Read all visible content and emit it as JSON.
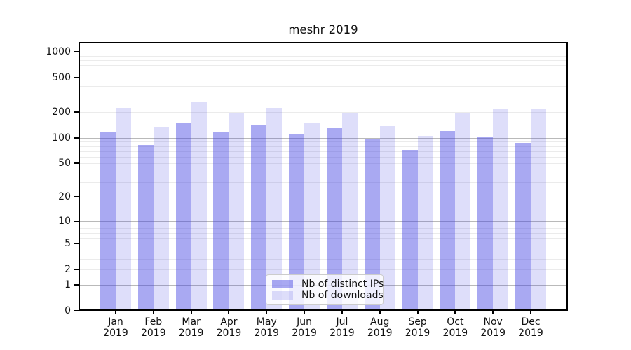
{
  "title": "meshr 2019",
  "chart_data": {
    "type": "bar",
    "title": "meshr 2019",
    "categories": [
      "Jan 2019",
      "Feb 2019",
      "Mar 2019",
      "Apr 2019",
      "May 2019",
      "Jun 2019",
      "Jul 2019",
      "Aug 2019",
      "Sep 2019",
      "Oct 2019",
      "Nov 2019",
      "Dec 2019"
    ],
    "series": [
      {
        "name": "Nb of distinct IPs",
        "color": "rgba(60,60,225,0.44)",
        "values": [
          118,
          83,
          148,
          115,
          139,
          110,
          129,
          96,
          72,
          120,
          102,
          87
        ]
      },
      {
        "name": "Nb of downloads",
        "color": "rgba(60,60,225,0.17)",
        "values": [
          224,
          134,
          258,
          196,
          224,
          150,
          193,
          137,
          105,
          193,
          216,
          220
        ]
      }
    ],
    "xlabel": "",
    "ylabel": "",
    "yscale": "log10(1+v)",
    "yticks": [
      0,
      1,
      2,
      5,
      10,
      20,
      50,
      100,
      200,
      500,
      1000
    ],
    "ylim": [
      0,
      1301
    ],
    "grid": true,
    "grid_major_at": [
      1,
      10,
      100,
      1000
    ],
    "legend_position": "bottom-center"
  },
  "colors": {
    "grid_major": "#b9b9b9",
    "grid_minor": "#ebebeb",
    "spine": "#000000",
    "background": "#ffffff"
  }
}
